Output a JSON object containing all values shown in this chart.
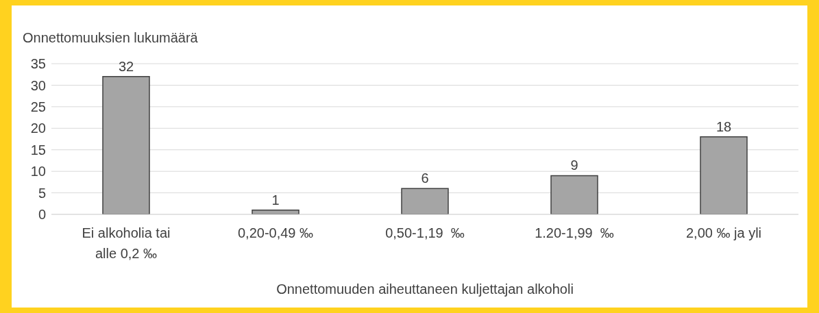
{
  "chart_data": {
    "type": "bar",
    "title": "Onnettomuuksien lukumäärä",
    "xlabel": "Onnettomuuden aiheuttaneen kuljettajan alkoholi",
    "categories": [
      "Ei alkoholia tai alle 0,2 ‰",
      "0,20-0,49 ‰",
      "0,50-1,19  ‰",
      "1.20-1,99  ‰",
      "2,00 ‰ ja yli"
    ],
    "values": [
      32,
      1,
      6,
      9,
      18
    ],
    "color": "#a5a5a5",
    "ylim": [
      0,
      35
    ],
    "yticks": [
      0,
      5,
      10,
      15,
      20,
      25,
      30,
      35
    ],
    "grid": "y",
    "data_labels": true
  }
}
